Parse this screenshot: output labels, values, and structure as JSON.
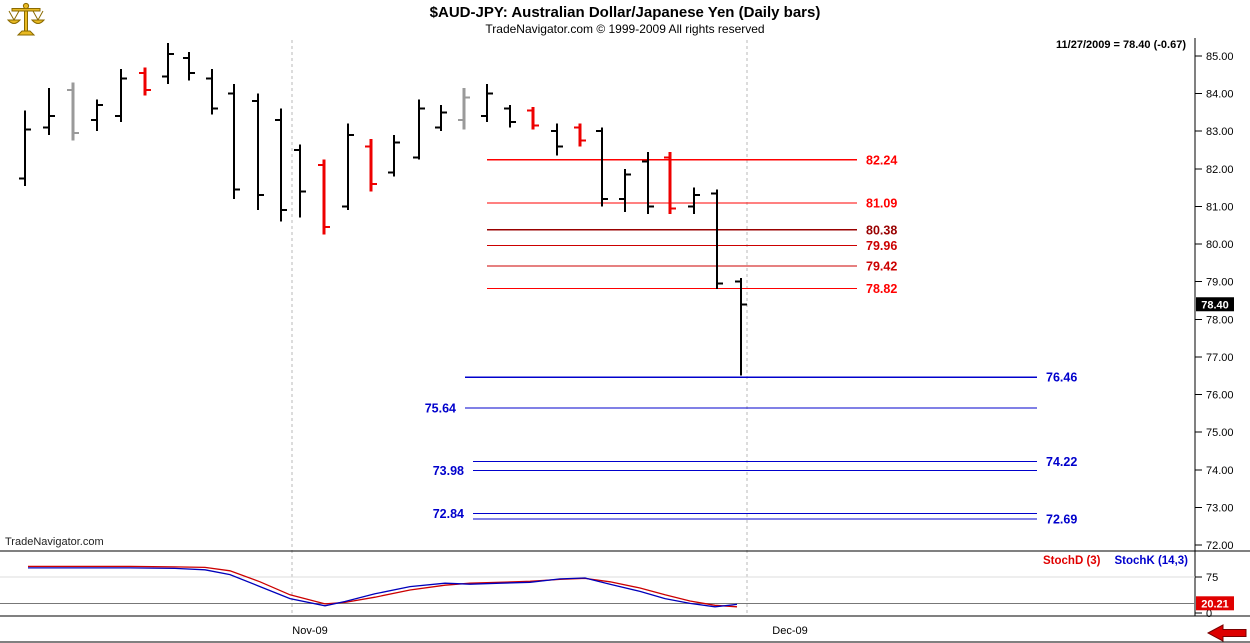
{
  "header": {
    "title": "$AUD-JPY:  Australian Dollar/Japanese Yen  (Daily bars)",
    "subtitle": "TradeNavigator.com © 1999-2009 All rights reserved",
    "quote_info": "11/27/2009 = 78.40 (-0.67)"
  },
  "watermark": "TradeNavigator.com",
  "footer": {
    "x_labels": [
      {
        "text": "Nov-09",
        "x": 310
      },
      {
        "text": "Dec-09",
        "x": 790
      }
    ]
  },
  "colors": {
    "bar_black": "#000000",
    "bar_red": "#ee0000",
    "bar_gray": "#9a9a9a",
    "price_badge_bg": "#000000",
    "stoch_badge_bg": "#e00000",
    "level_blue": "#0000cc",
    "level_red_bright": "#ff0000",
    "level_red_dark": "#990000"
  },
  "chart_data": {
    "type": "bar",
    "subtype": "ohlc-daily-bars",
    "title": "$AUD-JPY: Australian Dollar/Japanese Yen (Daily bars)",
    "last": {
      "date": "11/27/2009",
      "close": 78.4,
      "change": -0.67,
      "label": "78.40"
    },
    "y_axis": {
      "p_top": 85,
      "y_top": 56,
      "p_bottom": 72,
      "y_bottom": 545,
      "ticks": [
        {
          "v": 85,
          "label": "85.00"
        },
        {
          "v": 84,
          "label": "84.00"
        },
        {
          "v": 83,
          "label": "83.00"
        },
        {
          "v": 82,
          "label": "82.00"
        },
        {
          "v": 81,
          "label": "81.00"
        },
        {
          "v": 80,
          "label": "80.00"
        },
        {
          "v": 79,
          "label": "79.00"
        },
        {
          "v": 78,
          "label": "78.00"
        },
        {
          "v": 77,
          "label": "77.00"
        },
        {
          "v": 76,
          "label": "76.00"
        },
        {
          "v": 75,
          "label": "75.00"
        },
        {
          "v": 74,
          "label": "74.00"
        },
        {
          "v": 73,
          "label": "73.00"
        },
        {
          "v": 72,
          "label": "72.00"
        }
      ]
    },
    "x_gridlines": [
      292,
      747
    ],
    "bars": [
      {
        "x": 25,
        "o": 81.75,
        "h": 83.55,
        "l": 81.55,
        "c": 83.05,
        "col": "k"
      },
      {
        "x": 49,
        "o": 83.1,
        "h": 84.15,
        "l": 82.9,
        "c": 83.4,
        "col": "k"
      },
      {
        "x": 73,
        "o": 84.1,
        "h": 84.3,
        "l": 82.75,
        "c": 82.95,
        "col": "g"
      },
      {
        "x": 97,
        "o": 83.3,
        "h": 83.85,
        "l": 83.0,
        "c": 83.7,
        "col": "k"
      },
      {
        "x": 121,
        "o": 83.4,
        "h": 84.65,
        "l": 83.25,
        "c": 84.4,
        "col": "k"
      },
      {
        "x": 145,
        "o": 84.55,
        "h": 84.7,
        "l": 83.95,
        "c": 84.1,
        "col": "r"
      },
      {
        "x": 168,
        "o": 84.45,
        "h": 85.35,
        "l": 84.25,
        "c": 85.05,
        "col": "k"
      },
      {
        "x": 189,
        "o": 84.95,
        "h": 85.1,
        "l": 84.35,
        "c": 84.55,
        "col": "k"
      },
      {
        "x": 212,
        "o": 84.4,
        "h": 84.65,
        "l": 83.45,
        "c": 83.6,
        "col": "k"
      },
      {
        "x": 234,
        "o": 84.0,
        "h": 84.25,
        "l": 81.2,
        "c": 81.45,
        "col": "k"
      },
      {
        "x": 258,
        "o": 83.8,
        "h": 84.0,
        "l": 80.9,
        "c": 81.3,
        "col": "k"
      },
      {
        "x": 281,
        "o": 83.3,
        "h": 83.6,
        "l": 80.6,
        "c": 80.9,
        "col": "k"
      },
      {
        "x": 300,
        "o": 82.5,
        "h": 82.65,
        "l": 80.7,
        "c": 81.4,
        "col": "k"
      },
      {
        "x": 324,
        "o": 82.1,
        "h": 82.25,
        "l": 80.25,
        "c": 80.45,
        "col": "r"
      },
      {
        "x": 348,
        "o": 81.0,
        "h": 83.2,
        "l": 80.9,
        "c": 82.9,
        "col": "k"
      },
      {
        "x": 371,
        "o": 82.6,
        "h": 82.8,
        "l": 81.4,
        "c": 81.6,
        "col": "r"
      },
      {
        "x": 394,
        "o": 81.9,
        "h": 82.9,
        "l": 81.8,
        "c": 82.7,
        "col": "k"
      },
      {
        "x": 419,
        "o": 82.3,
        "h": 83.85,
        "l": 82.25,
        "c": 83.6,
        "col": "k"
      },
      {
        "x": 441,
        "o": 83.1,
        "h": 83.7,
        "l": 83.0,
        "c": 83.5,
        "col": "k"
      },
      {
        "x": 464,
        "o": 83.3,
        "h": 84.15,
        "l": 83.05,
        "c": 83.9,
        "col": "g"
      },
      {
        "x": 487,
        "o": 83.4,
        "h": 84.25,
        "l": 83.25,
        "c": 84.0,
        "col": "k"
      },
      {
        "x": 510,
        "o": 83.6,
        "h": 83.7,
        "l": 83.1,
        "c": 83.25,
        "col": "k"
      },
      {
        "x": 533,
        "o": 83.55,
        "h": 83.65,
        "l": 83.05,
        "c": 83.15,
        "col": "r"
      },
      {
        "x": 557,
        "o": 83.0,
        "h": 83.2,
        "l": 82.35,
        "c": 82.6,
        "col": "k"
      },
      {
        "x": 580,
        "o": 83.1,
        "h": 83.2,
        "l": 82.6,
        "c": 82.75,
        "col": "r"
      },
      {
        "x": 602,
        "o": 83.0,
        "h": 83.1,
        "l": 81.0,
        "c": 81.2,
        "col": "k"
      },
      {
        "x": 625,
        "o": 81.2,
        "h": 82.0,
        "l": 80.85,
        "c": 81.85,
        "col": "k"
      },
      {
        "x": 648,
        "o": 82.2,
        "h": 82.45,
        "l": 80.8,
        "c": 81.0,
        "col": "k"
      },
      {
        "x": 670,
        "o": 82.3,
        "h": 82.45,
        "l": 80.8,
        "c": 80.95,
        "col": "r"
      },
      {
        "x": 694,
        "o": 81.0,
        "h": 81.5,
        "l": 80.8,
        "c": 81.3,
        "col": "k"
      },
      {
        "x": 717,
        "o": 81.35,
        "h": 81.45,
        "l": 78.8,
        "c": 78.95,
        "col": "k"
      },
      {
        "x": 741,
        "o": 79.0,
        "h": 79.1,
        "l": 76.5,
        "c": 78.4,
        "col": "k"
      }
    ],
    "levels": [
      {
        "price": 82.24,
        "label": "82.24",
        "x1": 487,
        "x2": 857,
        "side": "right",
        "color": "#ff0000"
      },
      {
        "price": 81.09,
        "label": "81.09",
        "x1": 487,
        "x2": 857,
        "side": "right",
        "color": "#ff0000"
      },
      {
        "price": 80.38,
        "label": "80.38",
        "x1": 487,
        "x2": 857,
        "side": "right",
        "color": "#990000"
      },
      {
        "price": 79.96,
        "label": "79.96",
        "x1": 487,
        "x2": 857,
        "side": "right",
        "color": "#cc0000"
      },
      {
        "price": 79.42,
        "label": "79.42",
        "x1": 487,
        "x2": 857,
        "side": "right",
        "color": "#cc0000"
      },
      {
        "price": 78.82,
        "label": "78.82",
        "x1": 487,
        "x2": 857,
        "side": "right",
        "color": "#ff0000"
      },
      {
        "price": 76.46,
        "label": "76.46",
        "x1": 465,
        "x2": 1037,
        "side": "right",
        "color": "#0000cc"
      },
      {
        "price": 75.64,
        "label": "75.64",
        "x1": 465,
        "x2": 1037,
        "side": "left",
        "color": "#0000cc"
      },
      {
        "price": 74.22,
        "label": "74.22",
        "x1": 473,
        "x2": 1037,
        "side": "right",
        "color": "#0000cc"
      },
      {
        "price": 73.98,
        "label": "73.98",
        "x1": 473,
        "x2": 1037,
        "side": "left",
        "color": "#0000cc"
      },
      {
        "price": 72.84,
        "label": "72.84",
        "x1": 473,
        "x2": 1037,
        "side": "left",
        "color": "#0000cc"
      },
      {
        "price": 72.69,
        "label": "72.69",
        "x1": 473,
        "x2": 1037,
        "side": "right",
        "color": "#0000cc"
      }
    ],
    "stoch_panel": {
      "y_top": 552,
      "y_bottom": 615,
      "y_75": 577,
      "y_0": 613,
      "axis_ticks": [
        {
          "v": 75,
          "label": "75"
        },
        {
          "v": 0,
          "label": "0"
        }
      ],
      "threshold_values": [
        75,
        20
      ],
      "legend": [
        {
          "text": "StochD (3)",
          "color": "#e00000"
        },
        {
          "text": "StochK (14,3)",
          "color": "#0000cc"
        }
      ],
      "value": 20.21,
      "value_label": "20.21",
      "series": [
        {
          "name": "StochD",
          "color": "#cc0000",
          "points": [
            [
              28,
              97
            ],
            [
              80,
              97
            ],
            [
              130,
              97
            ],
            [
              175,
              96
            ],
            [
              205,
              95
            ],
            [
              230,
              88
            ],
            [
              260,
              65
            ],
            [
              290,
              38
            ],
            [
              325,
              19
            ],
            [
              345,
              22
            ],
            [
              375,
              33
            ],
            [
              410,
              48
            ],
            [
              445,
              58
            ],
            [
              470,
              62
            ],
            [
              500,
              64
            ],
            [
              530,
              66
            ],
            [
              560,
              70
            ],
            [
              585,
              72
            ],
            [
              610,
              65
            ],
            [
              640,
              52
            ],
            [
              665,
              38
            ],
            [
              690,
              25
            ],
            [
              715,
              16
            ],
            [
              737,
              13
            ]
          ]
        },
        {
          "name": "StochK",
          "color": "#0000bb",
          "points": [
            [
              28,
              94
            ],
            [
              80,
              94
            ],
            [
              130,
              94
            ],
            [
              175,
              93
            ],
            [
              205,
              90
            ],
            [
              230,
              80
            ],
            [
              260,
              55
            ],
            [
              290,
              30
            ],
            [
              325,
              15
            ],
            [
              345,
              24
            ],
            [
              375,
              40
            ],
            [
              410,
              55
            ],
            [
              445,
              62
            ],
            [
              470,
              60
            ],
            [
              500,
              62
            ],
            [
              530,
              64
            ],
            [
              560,
              71
            ],
            [
              585,
              73
            ],
            [
              610,
              60
            ],
            [
              640,
              45
            ],
            [
              665,
              30
            ],
            [
              690,
              20
            ],
            [
              715,
              13
            ],
            [
              737,
              18
            ]
          ]
        }
      ]
    }
  }
}
